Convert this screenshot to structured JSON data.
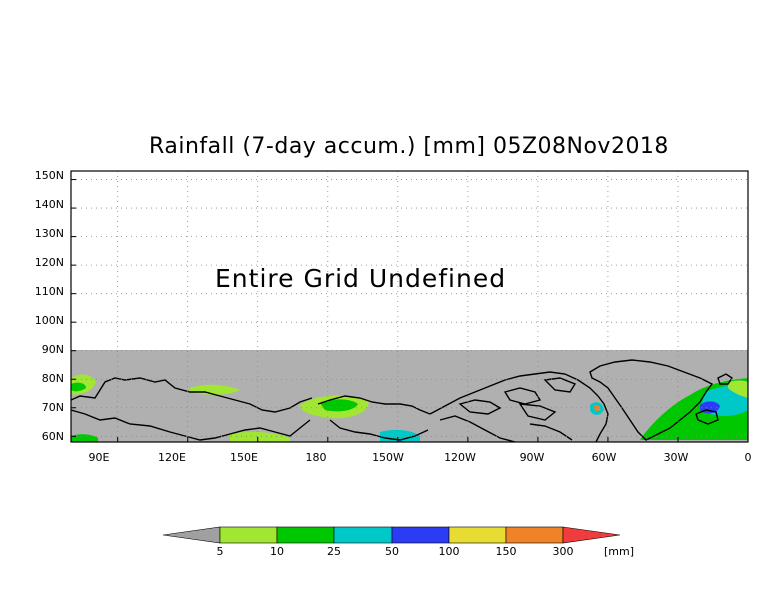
{
  "title": "Rainfall (7-day accum.) [mm] 05Z08Nov2018",
  "overlay_message": "Entire Grid Undefined",
  "y_axis": {
    "labels": [
      "150N",
      "140N",
      "130N",
      "120N",
      "110N",
      "100N",
      "90N",
      "80N",
      "70N",
      "60N"
    ],
    "values": [
      150,
      140,
      130,
      120,
      110,
      100,
      90,
      80,
      70,
      60
    ]
  },
  "x_axis": {
    "labels": [
      "90E",
      "120E",
      "150E",
      "180",
      "150W",
      "120W",
      "90W",
      "60W",
      "30W",
      "0"
    ],
    "values": [
      90,
      120,
      150,
      180,
      210,
      240,
      270,
      300,
      330,
      360
    ]
  },
  "map_extent": {
    "lon_min": 70,
    "lon_max": 360,
    "lat_min": 58,
    "lat_max": 153
  },
  "undefined_region_color": "#b0b0b0",
  "colorbar": {
    "labels": [
      "5",
      "10",
      "25",
      "50",
      "100",
      "150",
      "300"
    ],
    "units": "[mm]",
    "colors": [
      "#a0a0a0",
      "#a0e632",
      "#00c800",
      "#00c8c8",
      "#2c3cf5",
      "#e6dc32",
      "#f08228",
      "#f03c3c"
    ]
  }
}
